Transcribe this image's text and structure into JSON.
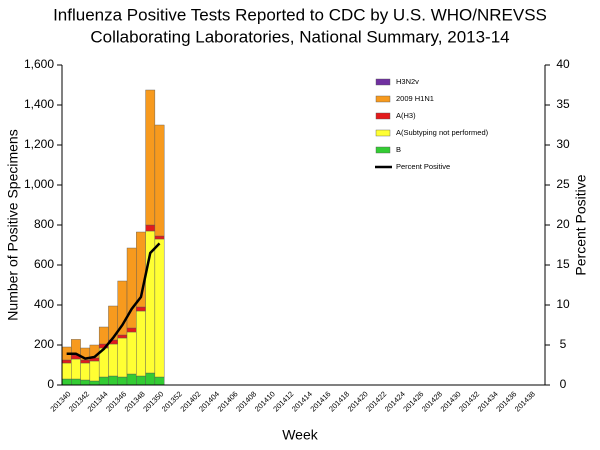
{
  "chart_data": {
    "type": "bar",
    "title": [
      "Influenza Positive Tests Reported to CDC by U.S. WHO/NREVSS",
      "Collaborating Laboratories, National Summary, 2013-14"
    ],
    "x_label": "Week",
    "y_label": "Number of Positive Specimens",
    "y2_label": "Percent Positive",
    "stacked": true,
    "categories": [
      "201340",
      null,
      "201342",
      null,
      "201344",
      null,
      "201346",
      null,
      "201348",
      null,
      "201350",
      null,
      "201352",
      null,
      "201402",
      null,
      "201404",
      null,
      "201406",
      null,
      "201408",
      null,
      "201410",
      null,
      "201412",
      null,
      "201414",
      null,
      "201416",
      null,
      "201418",
      null,
      "201420",
      null,
      "201422",
      null,
      "201424",
      null,
      "201426",
      null,
      "201428",
      null,
      "201430",
      null,
      "201432",
      null,
      "201434",
      null,
      "201436",
      null,
      "201438",
      null
    ],
    "series": [
      {
        "name": "H3N2v",
        "color": "#7030a0",
        "values": [
          0,
          0,
          0,
          0,
          0,
          0,
          0,
          0,
          0,
          0,
          0,
          null,
          null,
          null,
          null,
          null,
          null,
          null,
          null,
          null,
          null,
          null,
          null,
          null,
          null,
          null,
          null,
          null,
          null,
          null,
          null,
          null,
          null,
          null,
          null,
          null,
          null,
          null,
          null,
          null,
          null,
          null,
          null,
          null,
          null,
          null,
          null,
          null,
          null,
          null,
          null,
          null
        ]
      },
      {
        "name": "2009 H1N1",
        "color": "#f79a1e",
        "values": [
          65,
          78,
          60,
          65,
          85,
          170,
          270,
          400,
          375,
          675,
          555,
          null,
          null,
          null,
          null,
          null,
          null,
          null,
          null,
          null,
          null,
          null,
          null,
          null,
          null,
          null,
          null,
          null,
          null,
          null,
          null,
          null,
          null,
          null,
          null,
          null,
          null,
          null,
          null,
          null,
          null,
          null,
          null,
          null,
          null,
          null,
          null,
          null,
          null,
          null,
          null,
          null
        ]
      },
      {
        "name": "A(H3)",
        "color": "#e31a1c",
        "values": [
          15,
          20,
          15,
          15,
          20,
          20,
          15,
          20,
          20,
          30,
          15,
          null,
          null,
          null,
          null,
          null,
          null,
          null,
          null,
          null,
          null,
          null,
          null,
          null,
          null,
          null,
          null,
          null,
          null,
          null,
          null,
          null,
          null,
          null,
          null,
          null,
          null,
          null,
          null,
          null,
          null,
          null,
          null,
          null,
          null,
          null,
          null,
          null,
          null,
          null,
          null,
          null
        ]
      },
      {
        "name": "A(Subtyping not performed)",
        "color": "#ffff33",
        "values": [
          80,
          100,
          85,
          100,
          145,
          160,
          195,
          210,
          325,
          710,
          690,
          null,
          null,
          null,
          null,
          null,
          null,
          null,
          null,
          null,
          null,
          null,
          null,
          null,
          null,
          null,
          null,
          null,
          null,
          null,
          null,
          null,
          null,
          null,
          null,
          null,
          null,
          null,
          null,
          null,
          null,
          null,
          null,
          null,
          null,
          null,
          null,
          null,
          null,
          null,
          null,
          null
        ]
      },
      {
        "name": "B",
        "color": "#33cc33",
        "values": [
          30,
          30,
          25,
          20,
          40,
          45,
          40,
          55,
          45,
          60,
          40,
          null,
          null,
          null,
          null,
          null,
          null,
          null,
          null,
          null,
          null,
          null,
          null,
          null,
          null,
          null,
          null,
          null,
          null,
          null,
          null,
          null,
          null,
          null,
          null,
          null,
          null,
          null,
          null,
          null,
          null,
          null,
          null,
          null,
          null,
          null,
          null,
          null,
          null,
          null,
          null,
          null
        ]
      },
      {
        "name": "Percent Positive",
        "color": "#000000",
        "type": "line",
        "axis": "y2",
        "values": [
          3.9,
          3.9,
          3.3,
          3.5,
          4.5,
          5.9,
          7.5,
          9.5,
          11,
          16.5,
          17.7,
          null,
          null,
          null,
          null,
          null,
          null,
          null,
          null,
          null,
          null,
          null,
          null,
          null,
          null,
          null,
          null,
          null,
          null,
          null,
          null,
          null,
          null,
          null,
          null,
          null,
          null,
          null,
          null,
          null,
          null,
          null,
          null,
          null,
          null,
          null,
          null,
          null,
          null,
          null,
          null,
          null
        ]
      }
    ],
    "ylim": [
      0,
      1600
    ],
    "yticks": [
      0,
      200,
      400,
      600,
      800,
      {
        "value": 1000,
        "label": "1,000"
      },
      {
        "value": 1200,
        "label": "1,200"
      },
      {
        "value": 1400,
        "label": "1,400"
      },
      {
        "value": 1600,
        "label": "1,600"
      }
    ],
    "y2lim": [
      0,
      40
    ],
    "y2ticks": [
      0,
      5,
      10,
      15,
      20,
      25,
      30,
      35,
      40
    ]
  }
}
